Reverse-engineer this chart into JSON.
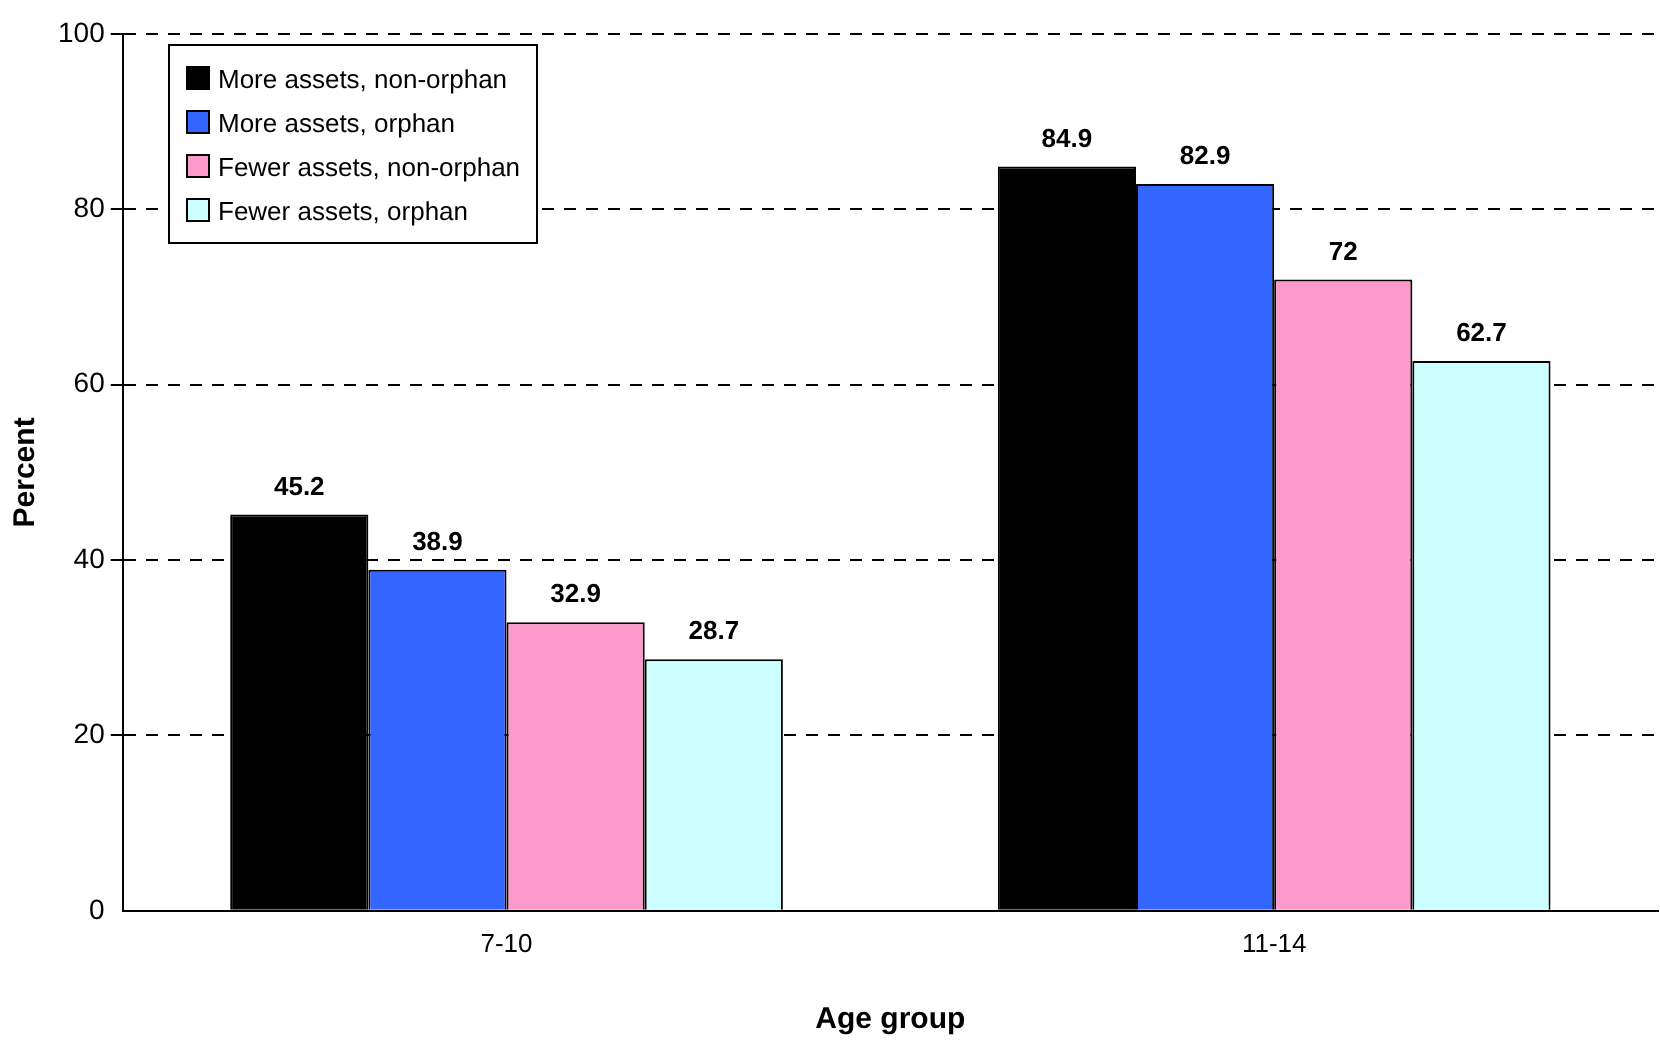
{
  "chart_data": {
    "type": "bar",
    "xlabel": "Age group",
    "ylabel": "Percent",
    "categories": [
      "7-10",
      "11-14"
    ],
    "series": [
      {
        "name": "More assets, non-orphan",
        "color": "#000000",
        "values": [
          45.2,
          84.9
        ]
      },
      {
        "name": "More assets, orphan",
        "color": "#3366ff",
        "values": [
          38.9,
          82.9
        ]
      },
      {
        "name": "Fewer assets, non-orphan",
        "color": "#ff99cc",
        "values": [
          32.9,
          72
        ]
      },
      {
        "name": "Fewer assets, orphan",
        "color": "#ccffff",
        "values": [
          28.7,
          62.7
        ]
      }
    ],
    "ylim": [
      0,
      100
    ],
    "yticks": [
      0,
      20,
      40,
      60,
      80,
      100
    ],
    "grid": "y",
    "legend": "top left",
    "data_labels": true
  }
}
